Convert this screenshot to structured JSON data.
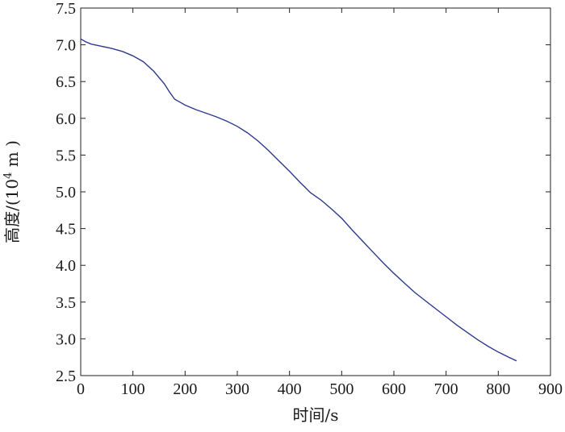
{
  "chart_data": {
    "type": "line",
    "title": "",
    "xlabel": "时间/s",
    "ylabel": {
      "prefix": "高度/(10",
      "exponent": "4",
      "suffix": " m )"
    },
    "xlim": [
      0,
      900
    ],
    "ylim": [
      2.5,
      7.5
    ],
    "xticks": [
      0,
      100,
      200,
      300,
      400,
      500,
      600,
      700,
      800,
      900
    ],
    "yticks": [
      "2.5",
      "3.0",
      "3.5",
      "4.0",
      "4.5",
      "5.0",
      "5.5",
      "6.0",
      "6.5",
      "7.0",
      "7.5"
    ],
    "grid": false,
    "series": [
      {
        "color": "#2e3a8c",
        "points": [
          [
            0,
            7.08
          ],
          [
            10,
            7.04
          ],
          [
            20,
            7.01
          ],
          [
            40,
            6.98
          ],
          [
            60,
            6.95
          ],
          [
            80,
            6.91
          ],
          [
            100,
            6.85
          ],
          [
            120,
            6.77
          ],
          [
            140,
            6.64
          ],
          [
            160,
            6.47
          ],
          [
            170,
            6.36
          ],
          [
            180,
            6.26
          ],
          [
            190,
            6.22
          ],
          [
            200,
            6.18
          ],
          [
            220,
            6.12
          ],
          [
            240,
            6.07
          ],
          [
            260,
            6.02
          ],
          [
            280,
            5.96
          ],
          [
            300,
            5.89
          ],
          [
            320,
            5.8
          ],
          [
            340,
            5.69
          ],
          [
            360,
            5.56
          ],
          [
            380,
            5.42
          ],
          [
            400,
            5.28
          ],
          [
            420,
            5.13
          ],
          [
            440,
            4.99
          ],
          [
            460,
            4.89
          ],
          [
            480,
            4.77
          ],
          [
            500,
            4.64
          ],
          [
            520,
            4.48
          ],
          [
            540,
            4.33
          ],
          [
            560,
            4.18
          ],
          [
            580,
            4.03
          ],
          [
            600,
            3.89
          ],
          [
            620,
            3.76
          ],
          [
            640,
            3.63
          ],
          [
            660,
            3.52
          ],
          [
            680,
            3.41
          ],
          [
            700,
            3.3
          ],
          [
            720,
            3.19
          ],
          [
            740,
            3.09
          ],
          [
            760,
            2.99
          ],
          [
            780,
            2.9
          ],
          [
            800,
            2.82
          ],
          [
            820,
            2.75
          ],
          [
            835,
            2.7
          ]
        ]
      }
    ]
  }
}
